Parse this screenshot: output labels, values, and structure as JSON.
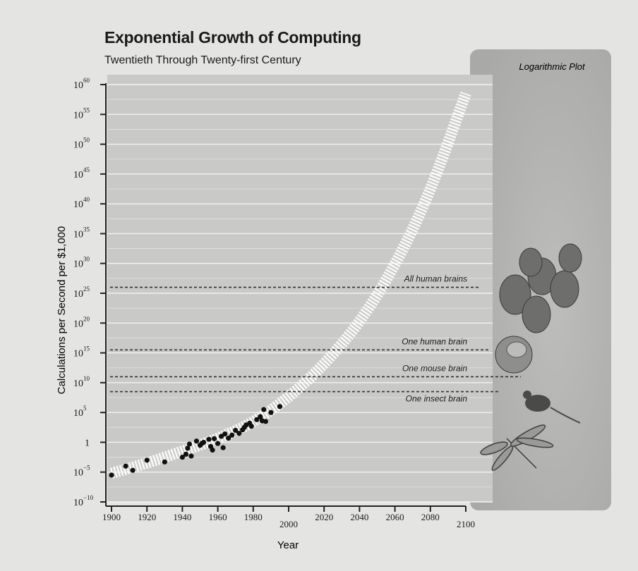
{
  "chart_data": {
    "type": "scatter",
    "title": "Exponential Growth of Computing",
    "subtitle": "Twentieth Through Twenty-first Century",
    "xlabel": "Year",
    "ylabel": "Calculations per Second per $1,000",
    "panel_label": "Logarithmic Plot",
    "y_scale": "log10",
    "xlim": [
      1900,
      2100
    ],
    "ylim_exponent": [
      -10,
      60
    ],
    "x_ticks": [
      1900,
      1920,
      1940,
      1960,
      1980,
      2000,
      2020,
      2040,
      2060,
      2080,
      2100
    ],
    "y_ticks": [
      {
        "label": "10",
        "exp": "60",
        "value": 60
      },
      {
        "label": "10",
        "exp": "55",
        "value": 55
      },
      {
        "label": "10",
        "exp": "50",
        "value": 50
      },
      {
        "label": "10",
        "exp": "45",
        "value": 45
      },
      {
        "label": "10",
        "exp": "40",
        "value": 40
      },
      {
        "label": "10",
        "exp": "35",
        "value": 35
      },
      {
        "label": "10",
        "exp": "30",
        "value": 30
      },
      {
        "label": "10",
        "exp": "25",
        "value": 25
      },
      {
        "label": "10",
        "exp": "20",
        "value": 20
      },
      {
        "label": "10",
        "exp": "15",
        "value": 15
      },
      {
        "label": "10",
        "exp": "10",
        "value": 10
      },
      {
        "label": "10",
        "exp": "5",
        "value": 5
      },
      {
        "label": "1",
        "exp": "",
        "value": 0
      },
      {
        "label": "10",
        "exp": "−5",
        "value": -5
      },
      {
        "label": "10",
        "exp": "−10",
        "value": -10
      }
    ],
    "points": [
      {
        "x": 1900,
        "y": -5.5
      },
      {
        "x": 1908,
        "y": -4.0
      },
      {
        "x": 1912,
        "y": -4.7
      },
      {
        "x": 1920,
        "y": -3.0
      },
      {
        "x": 1930,
        "y": -3.3
      },
      {
        "x": 1940,
        "y": -2.5
      },
      {
        "x": 1942,
        "y": -2.0
      },
      {
        "x": 1943,
        "y": -1.0
      },
      {
        "x": 1945,
        "y": -2.3
      },
      {
        "x": 1944,
        "y": -0.3
      },
      {
        "x": 1948,
        "y": 0.2
      },
      {
        "x": 1950,
        "y": -0.5
      },
      {
        "x": 1951,
        "y": -0.2
      },
      {
        "x": 1952,
        "y": 0.0
      },
      {
        "x": 1955,
        "y": 0.5
      },
      {
        "x": 1956,
        "y": -0.7
      },
      {
        "x": 1957,
        "y": -1.3
      },
      {
        "x": 1958,
        "y": 0.6
      },
      {
        "x": 1960,
        "y": -0.2
      },
      {
        "x": 1962,
        "y": 1.0
      },
      {
        "x": 1963,
        "y": -0.9
      },
      {
        "x": 1964,
        "y": 1.4
      },
      {
        "x": 1966,
        "y": 0.7
      },
      {
        "x": 1968,
        "y": 1.2
      },
      {
        "x": 1970,
        "y": 2.0
      },
      {
        "x": 1972,
        "y": 1.5
      },
      {
        "x": 1974,
        "y": 2.1
      },
      {
        "x": 1975,
        "y": 2.5
      },
      {
        "x": 1976,
        "y": 2.9
      },
      {
        "x": 1978,
        "y": 3.2
      },
      {
        "x": 1979,
        "y": 2.7
      },
      {
        "x": 1982,
        "y": 3.8
      },
      {
        "x": 1984,
        "y": 4.3
      },
      {
        "x": 1985,
        "y": 3.6
      },
      {
        "x": 1986,
        "y": 5.5
      },
      {
        "x": 1987,
        "y": 3.5
      },
      {
        "x": 1990,
        "y": 5.0
      },
      {
        "x": 1995,
        "y": 6.0
      }
    ],
    "trend": [
      {
        "x": 1900,
        "y": -5.2
      },
      {
        "x": 1920,
        "y": -3.5
      },
      {
        "x": 1940,
        "y": -1.5
      },
      {
        "x": 1960,
        "y": 0.6
      },
      {
        "x": 1980,
        "y": 3.3
      },
      {
        "x": 2000,
        "y": 7.5
      },
      {
        "x": 2020,
        "y": 13.0
      },
      {
        "x": 2040,
        "y": 20.0
      },
      {
        "x": 2060,
        "y": 29.5
      },
      {
        "x": 2080,
        "y": 42.0
      },
      {
        "x": 2100,
        "y": 58.5
      }
    ],
    "thresholds": [
      {
        "label": "All human brains",
        "value": 26
      },
      {
        "label": "One human brain",
        "value": 15.5
      },
      {
        "label": "One mouse brain",
        "value": 11
      },
      {
        "label": "One insect brain",
        "value": 8.5
      }
    ],
    "grid": true
  }
}
